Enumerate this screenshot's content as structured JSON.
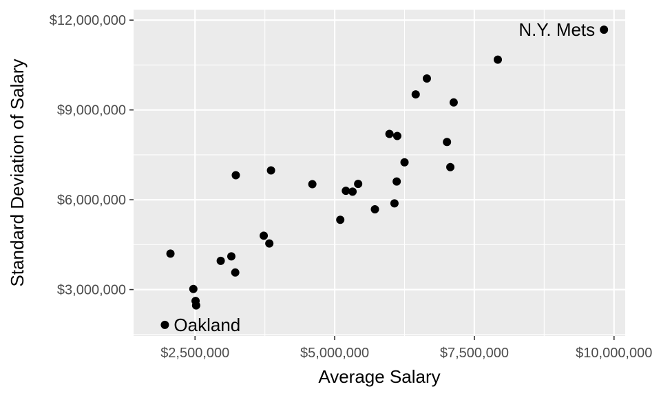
{
  "chart_data": {
    "type": "scatter",
    "title": "",
    "xlabel": "Average Salary",
    "ylabel": "Standard Deviation of Salary",
    "xlim": [
      1400000,
      10200000
    ],
    "ylim": [
      1450000,
      12350000
    ],
    "x_ticks": [
      2500000,
      5000000,
      7500000,
      10000000
    ],
    "x_tick_labels": [
      "$2,500,000",
      "$5,000,000",
      "$7,500,000",
      "$10,000,000"
    ],
    "y_ticks": [
      3000000,
      6000000,
      9000000,
      12000000
    ],
    "y_tick_labels": [
      "$3,000,000",
      "$6,000,000",
      "$9,000,000",
      "$12,000,000"
    ],
    "grid": true,
    "points": [
      {
        "x": 9820000,
        "y": 11680000,
        "label": "N.Y. Mets"
      },
      {
        "x": 7920000,
        "y": 10680000
      },
      {
        "x": 6650000,
        "y": 10050000
      },
      {
        "x": 6450000,
        "y": 9520000
      },
      {
        "x": 7130000,
        "y": 9250000
      },
      {
        "x": 5980000,
        "y": 8200000
      },
      {
        "x": 6120000,
        "y": 8130000
      },
      {
        "x": 7010000,
        "y": 7930000
      },
      {
        "x": 6250000,
        "y": 7250000
      },
      {
        "x": 7070000,
        "y": 7090000
      },
      {
        "x": 3230000,
        "y": 6820000
      },
      {
        "x": 3860000,
        "y": 6980000
      },
      {
        "x": 4600000,
        "y": 6520000
      },
      {
        "x": 5420000,
        "y": 6530000
      },
      {
        "x": 6110000,
        "y": 6610000
      },
      {
        "x": 5200000,
        "y": 6300000
      },
      {
        "x": 5320000,
        "y": 6270000
      },
      {
        "x": 6070000,
        "y": 5880000
      },
      {
        "x": 5720000,
        "y": 5680000
      },
      {
        "x": 5100000,
        "y": 5330000
      },
      {
        "x": 3730000,
        "y": 4800000
      },
      {
        "x": 3830000,
        "y": 4540000
      },
      {
        "x": 2060000,
        "y": 4200000
      },
      {
        "x": 3150000,
        "y": 4110000
      },
      {
        "x": 2960000,
        "y": 3960000
      },
      {
        "x": 3220000,
        "y": 3570000
      },
      {
        "x": 2470000,
        "y": 3020000
      },
      {
        "x": 2510000,
        "y": 2620000
      },
      {
        "x": 2520000,
        "y": 2470000
      },
      {
        "x": 1960000,
        "y": 1820000,
        "label": "Oakland"
      }
    ]
  }
}
